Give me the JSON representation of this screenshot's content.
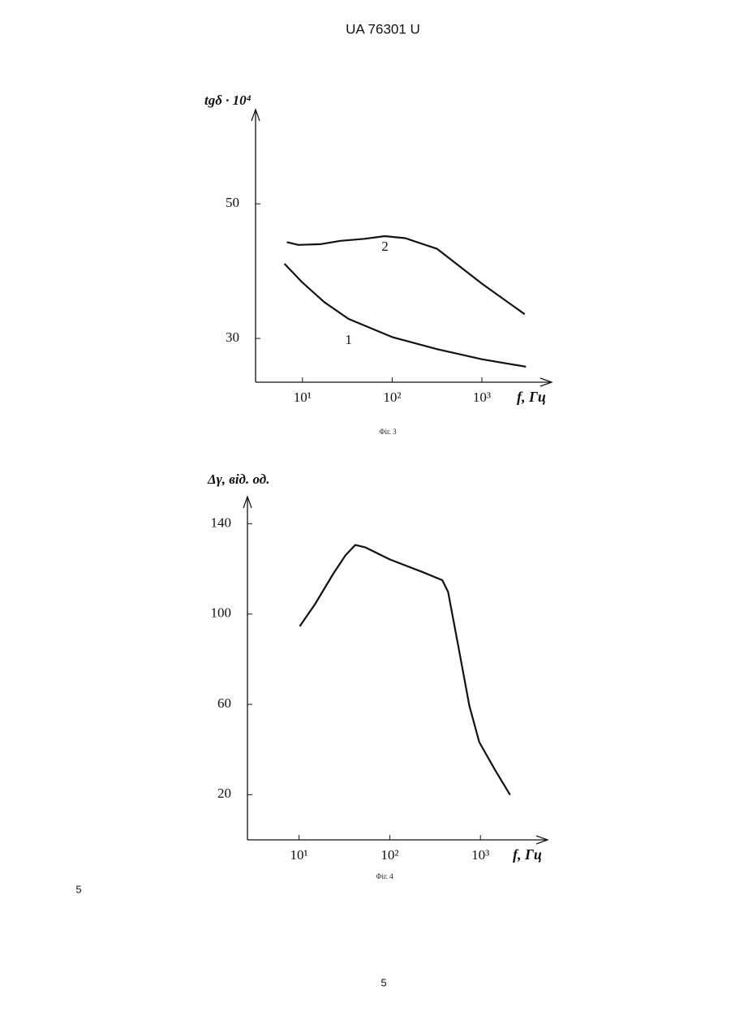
{
  "header": "UA 76301 U",
  "side_number": "5",
  "footer": "5",
  "chart_data": [
    {
      "type": "line",
      "caption": "Фіг. 3",
      "y_label": "tgδ · 10⁴",
      "x_label": "f, Гц",
      "xscale": "log",
      "xlim": [
        3,
        6000
      ],
      "ylim": [
        23.5,
        64
      ],
      "xticks": [
        {
          "value": 10,
          "label": "10¹"
        },
        {
          "value": 100,
          "label": "10²"
        },
        {
          "value": 1000,
          "label": "10³"
        }
      ],
      "yticks": [
        30,
        50
      ],
      "series": [
        {
          "name": "1",
          "color": "#111111",
          "x": [
            6.3,
            10,
            17.5,
            32.6,
            100,
            318,
            1010,
            3100
          ],
          "values": [
            41.1,
            38.3,
            35.4,
            32.9,
            30.2,
            28.4,
            26.9,
            25.8
          ]
        },
        {
          "name": "2",
          "color": "#111111",
          "x": [
            6.7,
            9.0,
            15.8,
            26.5,
            49,
            83,
            140,
            318,
            1010,
            3000
          ],
          "values": [
            44.3,
            43.9,
            44.0,
            44.5,
            44.8,
            45.2,
            44.9,
            43.3,
            38.1,
            33.6
          ]
        }
      ]
    },
    {
      "type": "line",
      "caption": "Фіг. 4",
      "y_label": "Δγ, від. од.",
      "x_label": "f, Гц",
      "xscale": "log",
      "xlim": [
        2.7,
        5500
      ],
      "ylim": [
        0,
        152
      ],
      "xticks": [
        {
          "value": 10,
          "label": "10¹"
        },
        {
          "value": 100,
          "label": "10²"
        },
        {
          "value": 1000,
          "label": "10³"
        }
      ],
      "yticks": [
        20,
        60,
        100,
        140
      ],
      "series": [
        {
          "color": "#111111",
          "x": [
            10.2,
            15.0,
            23.7,
            32.5,
            41.6,
            54,
            100,
            227,
            380,
            440,
            577,
            754,
            970,
            1460,
            2120
          ],
          "values": [
            94.6,
            104.4,
            117.7,
            126,
            130.6,
            129.5,
            124.2,
            118.7,
            115,
            109.8,
            84.6,
            59.4,
            43.3,
            30.7,
            19.9
          ]
        }
      ]
    }
  ]
}
